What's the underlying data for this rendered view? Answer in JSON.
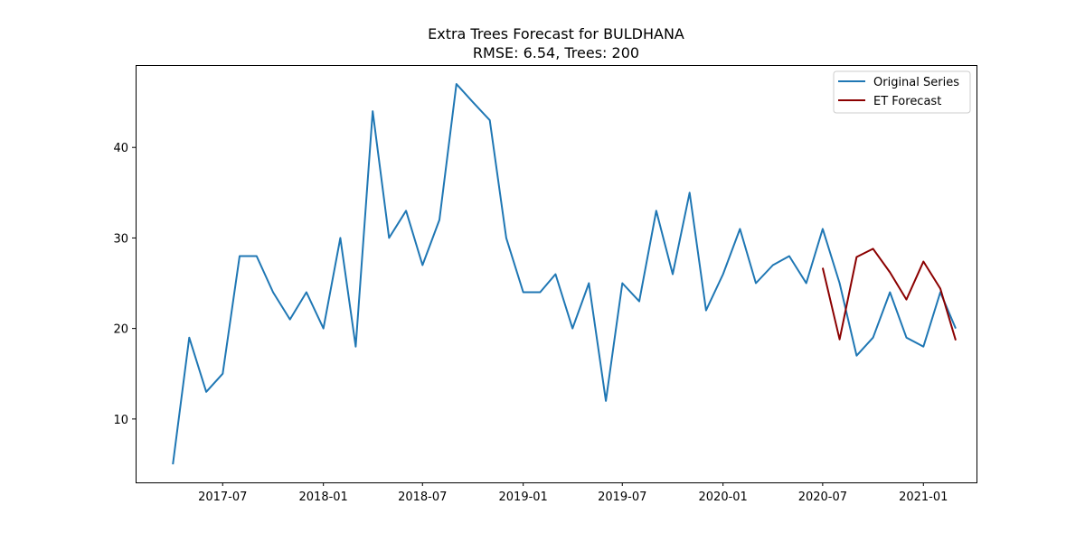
{
  "chart_data": {
    "type": "line",
    "title": "Extra Trees Forecast for BULDHANA",
    "subtitle": "RMSE: 6.54, Trees: 200",
    "xlabel": "",
    "ylabel": "",
    "x_ticks": [
      "2017-07",
      "2018-01",
      "2018-07",
      "2019-01",
      "2019-07",
      "2020-01",
      "2020-07",
      "2021-01"
    ],
    "y_ticks": [
      10,
      20,
      30,
      40
    ],
    "xlim": [
      "2017-01-23",
      "2021-04-08"
    ],
    "ylim": [
      3.0,
      49.1
    ],
    "legend_position": "top-right",
    "series": [
      {
        "name": "Original Series",
        "color": "#1f77b4",
        "x": [
          "2017-04",
          "2017-05",
          "2017-06",
          "2017-07",
          "2017-08",
          "2017-09",
          "2017-10",
          "2017-11",
          "2017-12",
          "2018-01",
          "2018-02",
          "2018-03",
          "2018-04",
          "2018-05",
          "2018-06",
          "2018-07",
          "2018-08",
          "2018-09",
          "2018-10",
          "2018-11",
          "2018-12",
          "2019-01",
          "2019-02",
          "2019-03",
          "2019-04",
          "2019-05",
          "2019-06",
          "2019-07",
          "2019-08",
          "2019-09",
          "2019-10",
          "2019-11",
          "2019-12",
          "2020-01",
          "2020-02",
          "2020-03",
          "2020-04",
          "2020-05",
          "2020-06",
          "2020-07",
          "2020-08",
          "2020-09",
          "2020-10",
          "2020-11",
          "2020-12",
          "2021-01",
          "2021-02",
          "2021-03"
        ],
        "values": [
          5,
          19,
          13,
          15,
          28,
          28,
          24,
          21,
          24,
          20,
          30,
          18,
          44,
          30,
          33,
          27,
          32,
          47,
          45,
          43,
          30,
          24,
          24,
          26,
          20,
          25,
          12,
          25,
          23,
          33,
          26,
          35,
          22,
          26,
          31,
          25,
          27,
          28,
          25,
          31,
          25,
          17,
          19,
          24,
          19,
          18,
          24,
          20
        ]
      },
      {
        "name": "ET Forecast",
        "color": "#8b0000",
        "x": [
          "2020-07",
          "2020-08",
          "2020-09",
          "2020-10",
          "2020-11",
          "2020-12",
          "2021-01",
          "2021-02",
          "2021-03"
        ],
        "values": [
          26.7,
          18.8,
          27.9,
          28.8,
          26.2,
          23.2,
          27.4,
          24.4,
          18.7
        ]
      }
    ]
  }
}
